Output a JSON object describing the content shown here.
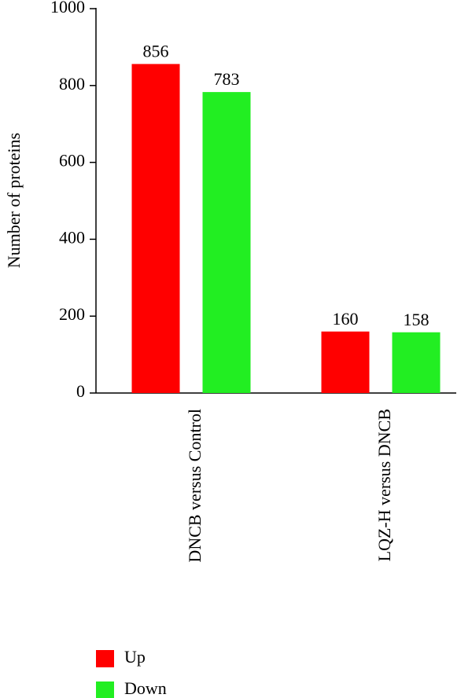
{
  "chart_data": {
    "type": "bar",
    "y_label": "Number of proteins",
    "categories": [
      "DNCB versus Control",
      "LQZ-H versus DNCB"
    ],
    "series": [
      {
        "name": "Up",
        "color": "#ff0000",
        "values": [
          856,
          160
        ]
      },
      {
        "name": "Down",
        "color": "#22ee22",
        "values": [
          783,
          158
        ]
      }
    ],
    "ylim": [
      0,
      1000
    ],
    "yticks": [
      0,
      200,
      400,
      600,
      800,
      1000
    ],
    "grid": false,
    "legend": "bottom-left",
    "value_labels_shown": true
  }
}
